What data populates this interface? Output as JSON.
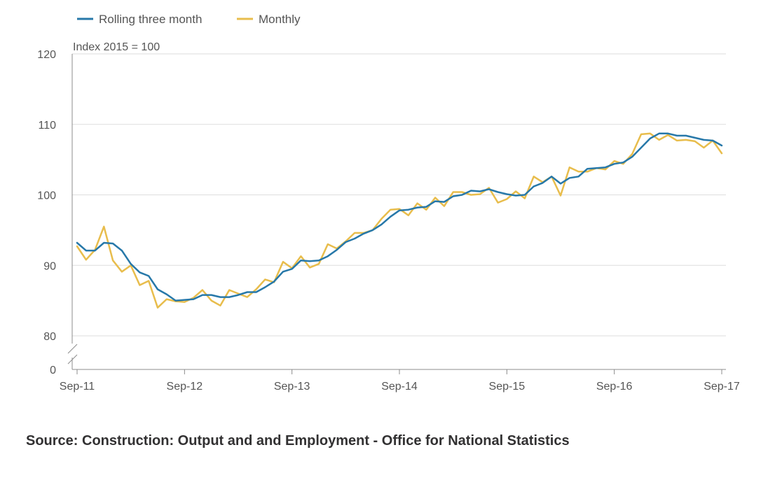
{
  "chart_data": {
    "type": "line",
    "unit_label": "Index 2015 = 100",
    "x_labels": [
      "Sep-11",
      "Sep-12",
      "Sep-13",
      "Sep-14",
      "Sep-15",
      "Sep-16",
      "Sep-17"
    ],
    "y_ticks": [
      "120",
      "110",
      "100",
      "90",
      "80",
      "0"
    ],
    "ylim": [
      80,
      120
    ],
    "y_axis_break": true,
    "grid": true,
    "legend_position": "top-left",
    "series": [
      {
        "name": "Rolling three month",
        "color": "#2778a9",
        "values": [
          93.2,
          92.1,
          92.1,
          93.2,
          93.1,
          92.1,
          90.2,
          89.0,
          88.5,
          86.6,
          85.9,
          85.0,
          85.1,
          85.2,
          85.8,
          85.8,
          85.5,
          85.5,
          85.8,
          86.2,
          86.2,
          86.9,
          87.7,
          89.1,
          89.5,
          90.7,
          90.6,
          90.7,
          91.3,
          92.2,
          93.3,
          93.8,
          94.5,
          95.0,
          95.8,
          96.9,
          97.8,
          97.9,
          98.2,
          98.3,
          99.1,
          99.0,
          99.8,
          100.0,
          100.6,
          100.5,
          100.8,
          100.4,
          100.1,
          99.9,
          100.0,
          101.2,
          101.7,
          102.6,
          101.6,
          102.4,
          102.6,
          103.7,
          103.8,
          103.9,
          104.4,
          104.6,
          105.4,
          106.7,
          108.0,
          108.7,
          108.7,
          108.4,
          108.4,
          108.1,
          107.8,
          107.7,
          107.0
        ]
      },
      {
        "name": "Monthly",
        "color": "#e8bd4c",
        "values": [
          92.7,
          90.8,
          92.2,
          95.5,
          90.7,
          89.1,
          90.0,
          87.2,
          87.8,
          84.0,
          85.2,
          84.9,
          84.8,
          85.4,
          86.5,
          85.0,
          84.3,
          86.5,
          86.0,
          85.5,
          86.6,
          88.0,
          87.6,
          90.5,
          89.6,
          91.3,
          89.7,
          90.2,
          93.0,
          92.4,
          93.4,
          94.6,
          94.6,
          95.0,
          96.6,
          97.9,
          98.0,
          97.1,
          98.8,
          97.9,
          99.6,
          98.4,
          100.4,
          100.4,
          100.0,
          100.1,
          101.0,
          98.9,
          99.4,
          100.5,
          99.5,
          102.6,
          101.8,
          102.6,
          99.9,
          103.9,
          103.3,
          103.3,
          103.8,
          103.6,
          104.8,
          104.4,
          105.8,
          108.6,
          108.7,
          107.8,
          108.5,
          107.7,
          107.8,
          107.6,
          106.7,
          107.7,
          105.9
        ]
      }
    ]
  },
  "source": "Source: Construction: Output and and Employment - Office for National Statistics"
}
